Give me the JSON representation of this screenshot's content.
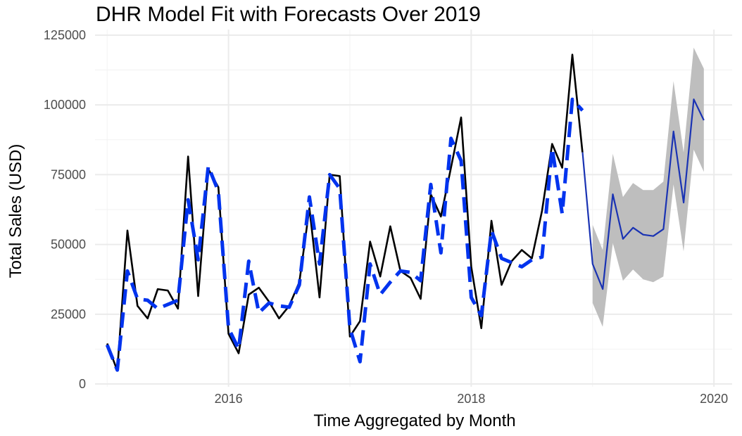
{
  "chart_data": {
    "type": "line",
    "title": "DHR Model Fit with Forecasts Over 2019",
    "xlabel": "Time Aggregated by Month",
    "ylabel": "Total Sales (USD)",
    "xlim": [
      2014.9,
      2020.15
    ],
    "ylim": [
      -1000,
      127000
    ],
    "x_ticks": [
      {
        "value": 2016,
        "label": "2016"
      },
      {
        "value": 2018,
        "label": "2018"
      },
      {
        "value": 2020,
        "label": "2020"
      }
    ],
    "y_ticks": [
      {
        "value": 0,
        "label": "0"
      },
      {
        "value": 25000,
        "label": "25000"
      },
      {
        "value": 50000,
        "label": "50000"
      },
      {
        "value": 75000,
        "label": "75000"
      },
      {
        "value": 100000,
        "label": "100000"
      },
      {
        "value": 125000,
        "label": "125000"
      }
    ],
    "grid": true,
    "legend": "none",
    "series": [
      {
        "role": "observed",
        "color": "#000000",
        "style": "solid",
        "x_start": 2015.0,
        "x_step": 0.08333,
        "values": [
          14500,
          4800,
          55000,
          28000,
          23500,
          34000,
          33500,
          27000,
          81500,
          31500,
          77000,
          70500,
          18000,
          11000,
          32000,
          34500,
          29500,
          23500,
          28000,
          36500,
          63000,
          31000,
          75000,
          74500,
          17000,
          22500,
          51000,
          38500,
          56500,
          40500,
          38000,
          30500,
          68000,
          60000,
          77500,
          95500,
          42000,
          20000,
          58500,
          35500,
          44000,
          48000,
          45000,
          62000,
          86000,
          77500,
          118000,
          83000
        ]
      },
      {
        "role": "fitted",
        "color": "#0033ee",
        "style": "dashed",
        "x_start": 2015.0,
        "x_step": 0.08333,
        "values": [
          14000,
          5000,
          40500,
          30500,
          30000,
          27000,
          28500,
          30000,
          66000,
          44500,
          78000,
          69000,
          20000,
          12500,
          44000,
          25500,
          29000,
          28000,
          27500,
          35500,
          67000,
          43000,
          75000,
          70000,
          20000,
          8000,
          43000,
          32000,
          36500,
          40500,
          40000,
          37000,
          71500,
          47000,
          88000,
          80000,
          31000,
          24500,
          55000,
          45000,
          43500,
          42000,
          44500,
          45500,
          84500,
          61000,
          102000,
          98000
        ]
      },
      {
        "role": "forecast",
        "color": "#1a33b3",
        "style": "solid",
        "x_start": 2018.917,
        "x_step": 0.08333,
        "values": [
          83000,
          43000,
          34000,
          68000,
          52000,
          56000,
          53500,
          53000,
          55500,
          90500,
          65000,
          102000,
          94500
        ]
      }
    ],
    "forecast_interval": {
      "color": "#bebebe",
      "x_start": 2019.0,
      "x_step": 0.08333,
      "lower": [
        29000,
        20500,
        50500,
        37000,
        41000,
        37500,
        36500,
        38500,
        71500,
        47500,
        84000,
        76000
      ],
      "upper": [
        57000,
        48000,
        82500,
        67000,
        72000,
        69500,
        69500,
        72500,
        108500,
        83000,
        120500,
        113000
      ]
    }
  }
}
